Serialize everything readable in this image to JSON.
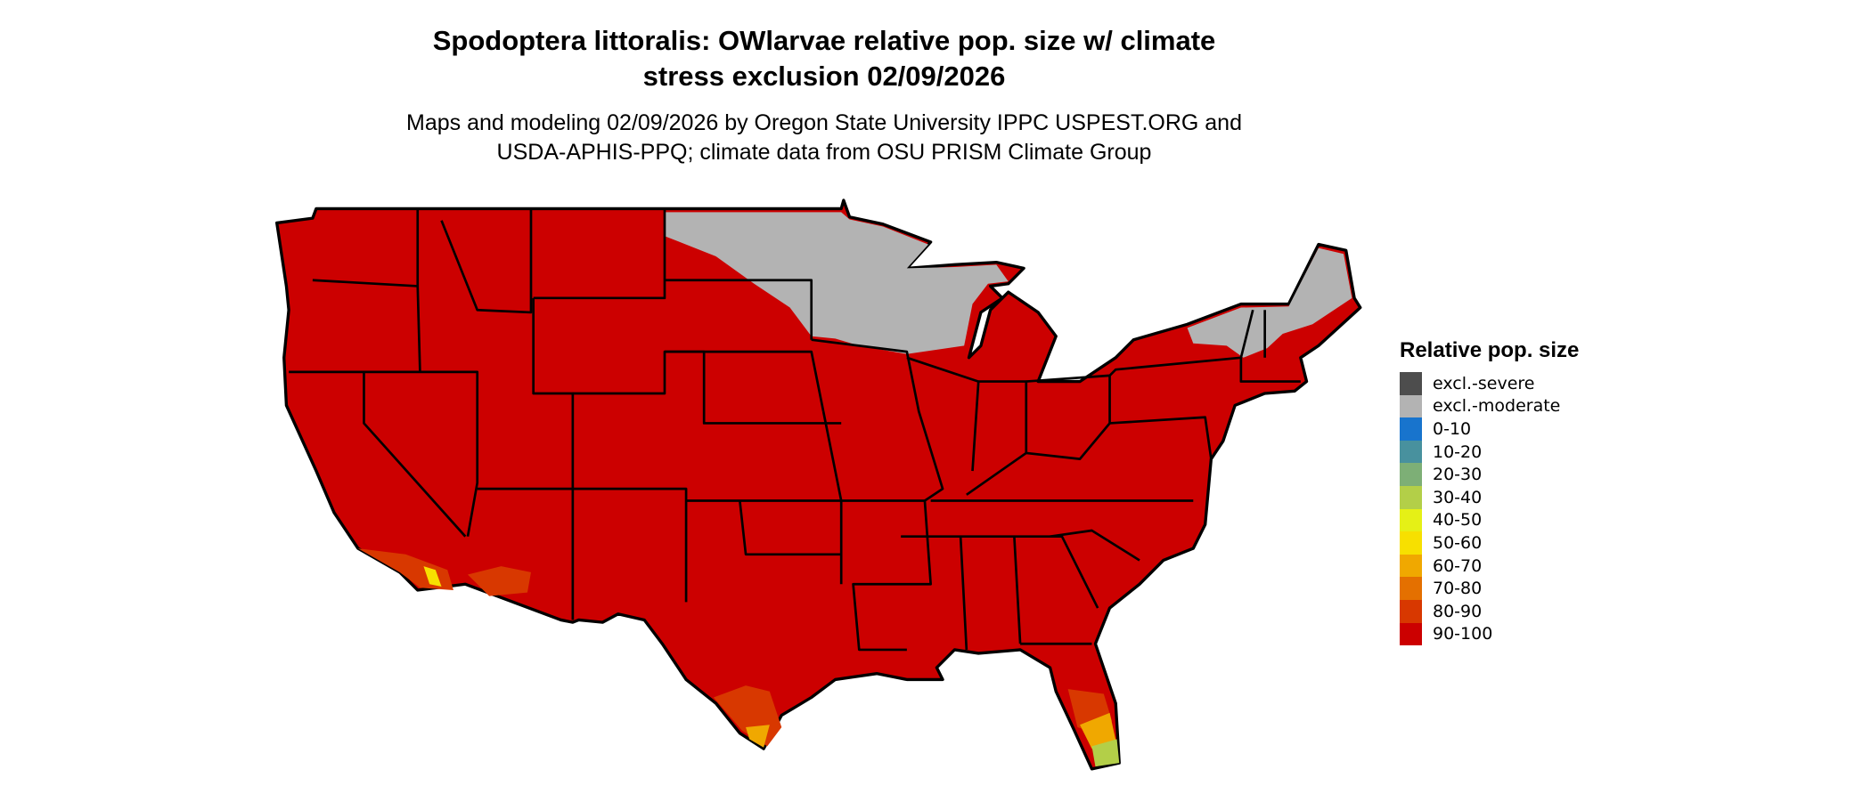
{
  "title": {
    "line1": "Spodoptera littoralis: OWlarvae relative pop. size w/ climate",
    "line2": "stress exclusion 02/09/2026"
  },
  "subtitle": {
    "line1": "Maps and modeling 02/09/2026 by Oregon State University IPPC USPEST.ORG and",
    "line2": "USDA-APHIS-PPQ; climate data from OSU PRISM Climate Group"
  },
  "legend": {
    "title": "Relative pop. size",
    "items": [
      {
        "label": "excl.-severe",
        "color": "#4d4d4d"
      },
      {
        "label": "excl.-moderate",
        "color": "#b3b3b3"
      },
      {
        "label": "0-10",
        "color": "#1874cd"
      },
      {
        "label": "10-20",
        "color": "#48919e"
      },
      {
        "label": "20-30",
        "color": "#7daf76"
      },
      {
        "label": "30-40",
        "color": "#b3cf48"
      },
      {
        "label": "40-50",
        "color": "#e5f016"
      },
      {
        "label": "50-60",
        "color": "#f7e000"
      },
      {
        "label": "60-70",
        "color": "#f0a800"
      },
      {
        "label": "70-80",
        "color": "#e47000"
      },
      {
        "label": "80-90",
        "color": "#d83800"
      },
      {
        "label": "90-100",
        "color": "#cc0000"
      }
    ]
  },
  "map_colors": {
    "dominant": "#cc0000",
    "excluded": "#b3b3b3",
    "borders": "#000000"
  }
}
